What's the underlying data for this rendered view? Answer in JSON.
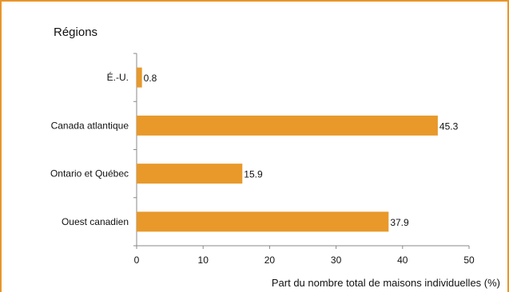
{
  "chart_data": {
    "type": "bar",
    "orientation": "horizontal",
    "y_axis_title": "Régions",
    "xlabel": "Part du nombre total de maisons individuelles (%)",
    "categories": [
      "É.-U.",
      "Canada atlantique",
      "Ontario et Québec",
      "Ouest canadien"
    ],
    "values": [
      0.8,
      45.3,
      15.9,
      37.9
    ],
    "value_labels": [
      "0.8",
      "45.3",
      "15.9",
      "37.9"
    ],
    "xlim": [
      0,
      50
    ],
    "xticks": [
      0,
      10,
      20,
      30,
      40,
      50
    ],
    "xtick_labels": [
      "0",
      "10",
      "20",
      "30",
      "40",
      "50"
    ],
    "grid": false,
    "legend": "none",
    "bar_color": "#e8992a",
    "frame_color": "#e8952a"
  }
}
